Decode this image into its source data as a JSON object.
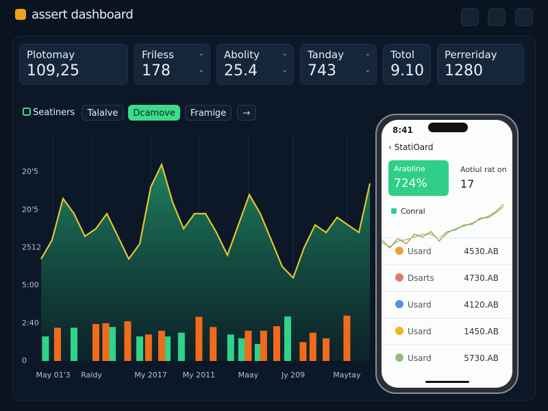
{
  "header": {
    "title": "assert dashboard"
  },
  "cards": [
    {
      "label": "Plotomay",
      "value": "109,25"
    },
    {
      "label": "Friless",
      "value": "178"
    },
    {
      "label": "Abolity",
      "value": "25.4"
    },
    {
      "label": "Tanday",
      "value": "743"
    },
    {
      "label": "Totol",
      "value": "9.10"
    },
    {
      "label": "Perreriday",
      "value": "1280"
    }
  ],
  "tabs": [
    "Seatiners",
    "Talalve",
    "Dcamove",
    "Framige"
  ],
  "chart_data": {
    "type": "line",
    "xlim": [
      0,
      30
    ],
    "ylim": [
      0,
      6
    ],
    "xticks": [
      {
        "value": 1.1,
        "label": "May 01'3"
      },
      {
        "value": 4.6,
        "label": "Raldy"
      },
      {
        "value": 10,
        "label": "My 2017"
      },
      {
        "value": 14.4,
        "label": "My 2011"
      },
      {
        "value": 18.9,
        "label": "Maay"
      },
      {
        "value": 23,
        "label": "Jy 209"
      },
      {
        "value": 27.9,
        "label": "Maytay"
      }
    ],
    "yticks": [
      0,
      {
        "value": 1,
        "label": "2:40"
      },
      {
        "value": 2,
        "label": "5:00"
      },
      {
        "value": 3,
        "label": "2512"
      },
      {
        "value": 4,
        "label": "20'5"
      },
      {
        "value": 5,
        "label": "20'5"
      }
    ],
    "grid": true,
    "series": [
      {
        "type": "area",
        "color": "#e3c62e",
        "x": [
          0,
          1,
          2,
          3,
          4,
          5,
          6,
          7,
          8,
          9,
          10,
          11,
          12,
          13,
          14,
          15,
          16,
          17,
          18,
          19,
          20,
          21,
          22,
          23,
          24,
          25,
          26,
          27,
          28,
          29,
          30
        ],
        "values": [
          2.7,
          3.2,
          4.3,
          3.9,
          3.3,
          3.5,
          3.9,
          3.3,
          2.7,
          3.1,
          4.6,
          5.2,
          4.2,
          3.5,
          3.9,
          3.9,
          3.4,
          2.8,
          3.6,
          4.4,
          3.9,
          3.2,
          2.5,
          2.2,
          3.0,
          3.6,
          3.4,
          3.8,
          3.6,
          3.4,
          4.7
        ]
      },
      {
        "type": "bar",
        "color": "#2fd38a",
        "x": [
          0.4,
          3.0,
          6.5,
          9.0,
          11.5,
          12.8,
          17.3,
          18.3,
          19.8,
          22.5
        ],
        "values": [
          0.65,
          0.88,
          0.9,
          0.65,
          0.65,
          0.75,
          0.7,
          0.6,
          0.45,
          1.18
        ]
      },
      {
        "type": "bar",
        "color": "#f26a1b",
        "x": [
          1.5,
          5.0,
          5.9,
          7.9,
          9.8,
          11.0,
          14.4,
          15.7,
          18.9,
          20.3,
          21.5,
          23.9,
          24.8,
          26.0,
          27.9
        ],
        "values": [
          0.88,
          0.98,
          1.0,
          1.05,
          0.7,
          0.8,
          1.17,
          0.9,
          0.8,
          0.8,
          0.92,
          0.5,
          0.75,
          0.6,
          1.2
        ]
      }
    ]
  },
  "phone": {
    "time": "8:41",
    "title": "StatiOard",
    "tile1": {
      "label": "Arabline",
      "value": "724%"
    },
    "tile2": {
      "label": "Aotiul rat on",
      "value": "17"
    },
    "section": "Conral",
    "rows": [
      {
        "name": "Usard",
        "value": "4530.AB"
      },
      {
        "name": "Dsarts",
        "value": "4730.AB"
      },
      {
        "name": "Usard",
        "value": "4120.AB"
      },
      {
        "name": "Usard",
        "value": "1450.AB"
      },
      {
        "name": "Usard",
        "value": "5730.AB"
      }
    ]
  }
}
